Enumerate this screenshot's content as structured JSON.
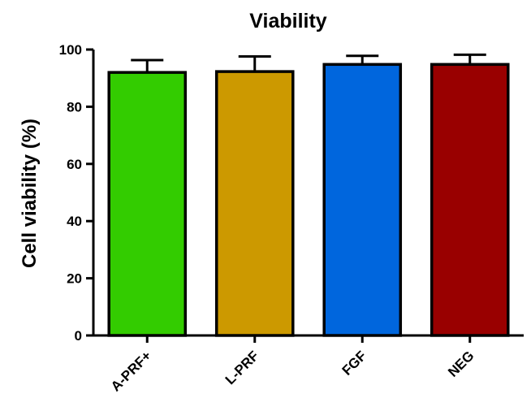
{
  "chart_data": {
    "type": "bar",
    "title": "Viability",
    "xlabel": "",
    "ylabel": "Cell viability (%)",
    "ylim": [
      0,
      100
    ],
    "yticks": [
      0,
      20,
      40,
      60,
      80,
      100
    ],
    "grid": false,
    "legend": "none",
    "categories": [
      "A-PRF+",
      "L-PRF",
      "FGF",
      "NEG"
    ],
    "values": [
      92,
      92.3,
      94.8,
      94.8
    ],
    "error": [
      4.3,
      5.3,
      3,
      3.4
    ],
    "colors": [
      "#33cc00",
      "#cc9900",
      "#0066dd",
      "#990000"
    ]
  }
}
